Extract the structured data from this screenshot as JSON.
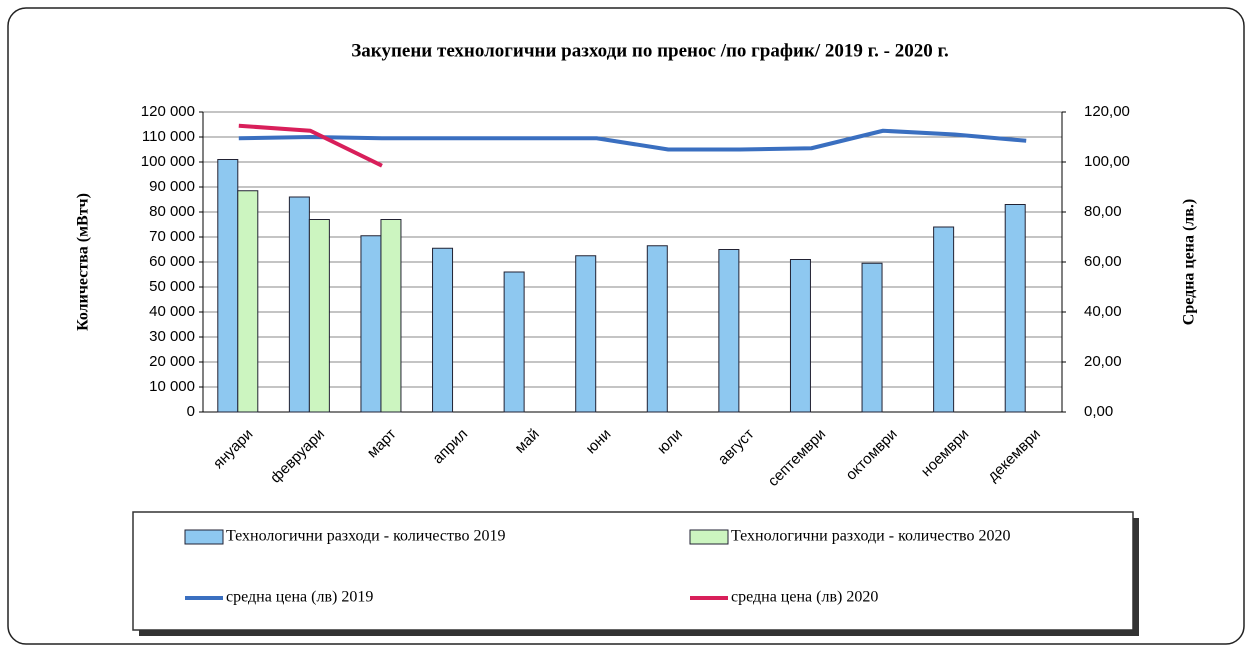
{
  "chart_data": {
    "type": "bar",
    "title": "Закупени технологични разходи по пренос /по график/ 2019 г. - 2020 г.",
    "y_label": "Количества (мВтч)",
    "y2_label": "Средна цена (лв.)",
    "categories": [
      "януари",
      "февруари",
      "март",
      "април",
      "май",
      "юни",
      "юли",
      "август",
      "септември",
      "октомври",
      "ноември",
      "декември"
    ],
    "series": [
      {
        "name": "Технологични разходи - количество 2019",
        "type": "bar",
        "color": "#8ec8f0",
        "values": [
          101000,
          86000,
          70500,
          65500,
          56000,
          62500,
          66500,
          65000,
          61000,
          59500,
          74000,
          83000
        ]
      },
      {
        "name": "Технологични разходи -  количество 2020",
        "type": "bar",
        "color": "#ccf5c0",
        "values": [
          88500,
          77000,
          77000,
          null,
          null,
          null,
          null,
          null,
          null,
          null,
          null,
          null
        ]
      },
      {
        "name": "средна цена (лв) 2019",
        "type": "line",
        "axis": "y2",
        "color": "#3a6fc0",
        "values": [
          109.5,
          110,
          109.5,
          109.5,
          109.5,
          109.5,
          105,
          105,
          105.5,
          112.5,
          111,
          108.5
        ]
      },
      {
        "name": "средна цена (лв) 2020",
        "type": "line",
        "axis": "y2",
        "color": "#d81f5a",
        "values": [
          114.5,
          112.5,
          98.5,
          null,
          null,
          null,
          null,
          null,
          null,
          null,
          null,
          null
        ]
      }
    ],
    "ylim": [
      0,
      120000
    ],
    "yticks": [
      {
        "value": 0,
        "label": "0"
      },
      {
        "value": 10000,
        "label": "10 000"
      },
      {
        "value": 20000,
        "label": "20 000"
      },
      {
        "value": 30000,
        "label": "30 000"
      },
      {
        "value": 40000,
        "label": "40 000"
      },
      {
        "value": 50000,
        "label": "50 000"
      },
      {
        "value": 60000,
        "label": "60 000"
      },
      {
        "value": 70000,
        "label": "70 000"
      },
      {
        "value": 80000,
        "label": "80 000"
      },
      {
        "value": 90000,
        "label": "90 000"
      },
      {
        "value": 100000,
        "label": "100 000"
      },
      {
        "value": 110000,
        "label": "110 000"
      },
      {
        "value": 120000,
        "label": "120 000"
      }
    ],
    "y2lim": [
      0,
      120
    ],
    "y2ticks": [
      {
        "value": 0,
        "label": "0,00"
      },
      {
        "value": 20,
        "label": "20,00"
      },
      {
        "value": 40,
        "label": "40,00"
      },
      {
        "value": 60,
        "label": "60,00"
      },
      {
        "value": 80,
        "label": "80,00"
      },
      {
        "value": 100,
        "label": "100,00"
      },
      {
        "value": 120,
        "label": "120,00"
      }
    ],
    "grid": true
  }
}
